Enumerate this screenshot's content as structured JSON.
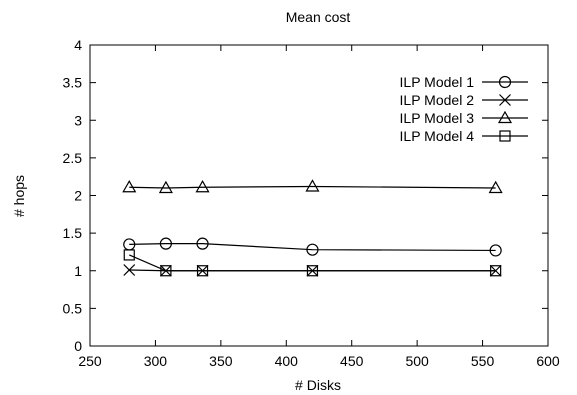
{
  "chart_data": {
    "type": "line",
    "title": "Mean cost",
    "xlabel": "# Disks",
    "ylabel": "# hops",
    "xlim": [
      250,
      600
    ],
    "ylim": [
      0,
      4
    ],
    "xticks": [
      "250",
      "300",
      "350",
      "400",
      "450",
      "500",
      "550",
      "600"
    ],
    "yticks": [
      "0",
      "0.5",
      "1",
      "1.5",
      "2",
      "2.5",
      "3",
      "3.5",
      "4"
    ],
    "grid": false,
    "legend_position": "top-right",
    "series": [
      {
        "name": "ILP Model 1",
        "marker": "circle",
        "x": [
          280,
          308,
          336,
          420,
          560
        ],
        "y": [
          1.35,
          1.36,
          1.36,
          1.28,
          1.27
        ]
      },
      {
        "name": "ILP Model 2",
        "marker": "x",
        "x": [
          280,
          308,
          336,
          420,
          560
        ],
        "y": [
          1.01,
          1.0,
          1.0,
          1.0,
          1.0
        ]
      },
      {
        "name": "ILP Model 3",
        "marker": "triangle",
        "x": [
          280,
          308,
          336,
          420,
          560
        ],
        "y": [
          2.11,
          2.1,
          2.11,
          2.12,
          2.1
        ]
      },
      {
        "name": "ILP Model 4",
        "marker": "square",
        "x": [
          280,
          308,
          336,
          420,
          560
        ],
        "y": [
          1.21,
          1.0,
          1.0,
          1.0,
          1.0
        ]
      }
    ]
  }
}
